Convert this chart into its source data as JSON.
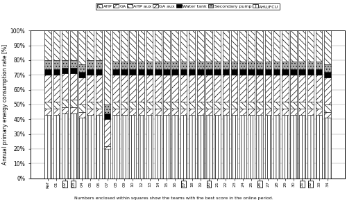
{
  "teams": [
    "Ref",
    "01",
    "02",
    "03",
    "04",
    "05",
    "06",
    "07",
    "08",
    "09",
    "10",
    "12",
    "13",
    "14",
    "15",
    "16",
    "17",
    "18",
    "19",
    "20",
    "21",
    "22",
    "23",
    "24",
    "25",
    "26",
    "27",
    "28",
    "29",
    "30",
    "31",
    "32",
    "33",
    "34"
  ],
  "boxed": [
    "02",
    "03",
    "17",
    "20",
    "26",
    "31",
    "32"
  ],
  "series_names": [
    "AHU/FCU",
    "GA aux",
    "AHP aux",
    "GA",
    "Water tank",
    "Secondary pump",
    "AHP"
  ],
  "hatches": [
    "||||",
    "////",
    "\\\\\\\\",
    "////",
    "",
    "....",
    "\\\\\\\\"
  ],
  "colors": [
    "white",
    "white",
    "white",
    "white",
    "black",
    "#aaaaaa",
    "white"
  ],
  "hatch_colors": [
    "black",
    "black",
    "black",
    "black",
    "black",
    "black",
    "black"
  ],
  "data": {
    "AHU/FCU": [
      43,
      43,
      44,
      44,
      41,
      43,
      43,
      20,
      43,
      43,
      43,
      43,
      43,
      43,
      43,
      43,
      43,
      43,
      43,
      43,
      43,
      43,
      43,
      43,
      43,
      43,
      43,
      43,
      43,
      43,
      43,
      43,
      43,
      41
    ],
    "GA aux": [
      4,
      4,
      4,
      4,
      4,
      4,
      4,
      2,
      4,
      4,
      4,
      4,
      4,
      4,
      4,
      4,
      4,
      4,
      4,
      4,
      4,
      4,
      4,
      4,
      4,
      4,
      4,
      4,
      4,
      4,
      4,
      4,
      4,
      4
    ],
    "AHP aux": [
      5,
      5,
      5,
      5,
      5,
      5,
      5,
      0,
      5,
      5,
      5,
      5,
      5,
      5,
      5,
      5,
      5,
      5,
      5,
      5,
      5,
      5,
      5,
      5,
      5,
      5,
      5,
      5,
      5,
      5,
      5,
      5,
      5,
      5
    ],
    "GA": [
      18,
      18,
      18,
      18,
      18,
      18,
      18,
      18,
      18,
      18,
      18,
      18,
      18,
      18,
      18,
      18,
      18,
      18,
      18,
      18,
      18,
      18,
      18,
      18,
      18,
      18,
      18,
      18,
      18,
      18,
      18,
      18,
      18,
      18
    ],
    "Water tank": [
      4,
      4,
      4,
      4,
      4,
      4,
      4,
      4,
      4,
      4,
      4,
      4,
      4,
      4,
      4,
      4,
      4,
      4,
      4,
      4,
      4,
      4,
      4,
      4,
      4,
      4,
      4,
      4,
      4,
      4,
      4,
      4,
      4,
      4
    ],
    "Secondary pump": [
      6,
      6,
      5,
      5,
      5,
      6,
      6,
      6,
      5,
      5,
      5,
      5,
      5,
      5,
      5,
      5,
      5,
      5,
      5,
      5,
      5,
      5,
      5,
      5,
      5,
      5,
      5,
      5,
      5,
      5,
      5,
      5,
      5,
      5
    ],
    "AHP": [
      20,
      20,
      20,
      20,
      23,
      20,
      20,
      50,
      21,
      21,
      21,
      21,
      21,
      21,
      21,
      21,
      21,
      21,
      21,
      21,
      21,
      21,
      21,
      21,
      21,
      21,
      21,
      21,
      21,
      21,
      21,
      21,
      21,
      23
    ]
  },
  "ylabel": "Annual primary energy consumption rate [%]",
  "footnote": "Numbers enclosed within squares show the teams with the best score in the online period.",
  "background_color": "#ffffff",
  "ylim": [
    0,
    100
  ],
  "ytick_pct": [
    0,
    10,
    20,
    30,
    40,
    50,
    60,
    70,
    80,
    90,
    100
  ]
}
